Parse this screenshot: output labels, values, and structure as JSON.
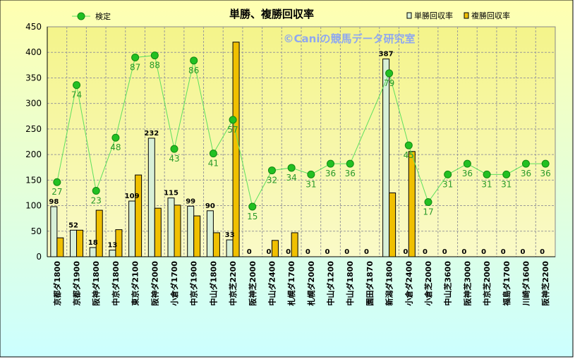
{
  "chart_data": {
    "type": "bar",
    "title": "単勝、複勝回収率",
    "watermark": "©Caniの競馬データ研究室",
    "xlabel": "",
    "ylabel": "",
    "ylim": [
      0,
      450
    ],
    "yticks": [
      0,
      50,
      100,
      150,
      200,
      250,
      300,
      350,
      400,
      450
    ],
    "grid": true,
    "legend_position": "top",
    "categories": [
      "京都ダ1800",
      "京都ダ1900",
      "阪神ダ1800",
      "中京ダ1800",
      "東京ダ2100",
      "阪神ダ2000",
      "小倉ダ1700",
      "中京ダ1900",
      "中山ダ1800",
      "中京芝2200",
      "阪神芝2000",
      "中山ダ2400",
      "札幌ダ1700",
      "札幌ダ2000",
      "中山ダ1200",
      "中山ダ1800",
      "園田ダ1870",
      "新潟ダ1800",
      "小倉ダ2400",
      "小倉芝2000",
      "中山芝3600",
      "阪神芝3000",
      "中京芝2000",
      "福島ダ1700",
      "川崎ダ1600",
      "阪神芝2200"
    ],
    "series": [
      {
        "name": "単勝回収率",
        "color": "#d8f0d8",
        "values": [
          98,
          52,
          18,
          13,
          109,
          232,
          115,
          99,
          90,
          33,
          0,
          0,
          0,
          0,
          0,
          0,
          0,
          387,
          0,
          0,
          0,
          0,
          0,
          0,
          0,
          0
        ],
        "labels": [
          "98",
          "52",
          "18",
          "13",
          "109",
          "232",
          "115",
          "99",
          "90",
          "33",
          "0",
          "0",
          "0",
          "0",
          "0",
          "0",
          "0",
          "387",
          "0",
          "0",
          "0",
          "0",
          "0",
          "0",
          "0",
          "0"
        ]
      },
      {
        "name": "複勝回収率",
        "color": "#f0c000",
        "values": [
          37,
          52,
          91,
          53,
          160,
          95,
          101,
          80,
          47,
          420,
          0,
          32,
          47,
          0,
          0,
          0,
          0,
          125,
          206,
          0,
          0,
          0,
          0,
          0,
          0,
          0
        ]
      },
      {
        "name": "検定",
        "type": "line",
        "color": "#22c022",
        "values": [
          146,
          336,
          129,
          233,
          390,
          394,
          211,
          384,
          202,
          268,
          98,
          169,
          174,
          161,
          182,
          182,
          0,
          359,
          218,
          107,
          161,
          182,
          161,
          161,
          182,
          182
        ],
        "labels": [
          "27",
          "74",
          "23",
          "48",
          "87",
          "88",
          "43",
          "86",
          "41",
          "57",
          "15",
          "32",
          "34",
          "31",
          "36",
          "36",
          "",
          "79",
          "45",
          "17",
          "31",
          "36",
          "31",
          "31",
          "36",
          "36"
        ]
      }
    ]
  }
}
